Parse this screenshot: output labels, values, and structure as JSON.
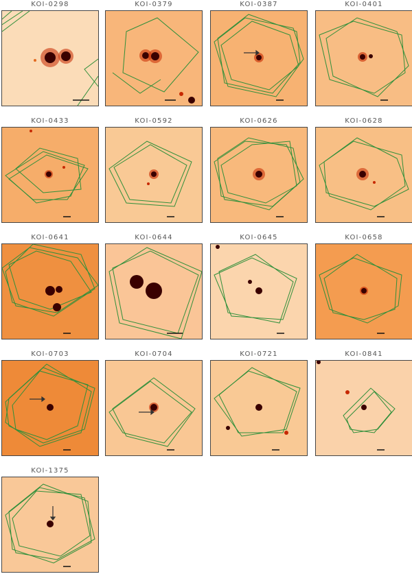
{
  "figure": {
    "panels": [
      {
        "id": "p1",
        "label": "KOI-0298",
        "bg": "#fbdcb8",
        "arrow": "none"
      },
      {
        "id": "p2",
        "label": "KOI-0379",
        "bg": "#f8b67a",
        "arrow": "none"
      },
      {
        "id": "p3",
        "label": "KOI-0387",
        "bg": "#f7b272",
        "arrow": "left"
      },
      {
        "id": "p4",
        "label": "KOI-0401",
        "bg": "#f8bd84",
        "arrow": "none"
      },
      {
        "id": "p5",
        "label": "KOI-0433",
        "bg": "#f6ad6a",
        "arrow": "none"
      },
      {
        "id": "p6",
        "label": "KOI-0592",
        "bg": "#f9c995",
        "arrow": "none"
      },
      {
        "id": "p7",
        "label": "KOI-0626",
        "bg": "#f8b97c",
        "arrow": "none"
      },
      {
        "id": "p8",
        "label": "KOI-0628",
        "bg": "#f8bf85",
        "arrow": "none"
      },
      {
        "id": "p9",
        "label": "KOI-0641",
        "bg": "#ef9040",
        "arrow": "none"
      },
      {
        "id": "p10",
        "label": "KOI-0644",
        "bg": "#fac597",
        "arrow": "none"
      },
      {
        "id": "p11",
        "label": "KOI-0645",
        "bg": "#fbd5ad",
        "arrow": "none"
      },
      {
        "id": "p12",
        "label": "KOI-0658",
        "bg": "#f49c50",
        "arrow": "none"
      },
      {
        "id": "p13",
        "label": "KOI-0703",
        "bg": "#ee8a38",
        "arrow": "left"
      },
      {
        "id": "p14",
        "label": "KOI-0704",
        "bg": "#f9c794",
        "arrow": "left"
      },
      {
        "id": "p15",
        "label": "KOI-0721",
        "bg": "#f9c995",
        "arrow": "none"
      },
      {
        "id": "p16",
        "label": "KOI-0841",
        "bg": "#fad2aa",
        "arrow": "none"
      },
      {
        "id": "p17",
        "label": "KOI-1375",
        "bg": "#f9c898",
        "arrow": "top"
      }
    ],
    "colors": {
      "aperture_outline": "#2f8f3a",
      "star_core": "#3a0000",
      "star_halo": "#c62800",
      "arrow": "#333333",
      "scale_bar": "#111111"
    }
  }
}
